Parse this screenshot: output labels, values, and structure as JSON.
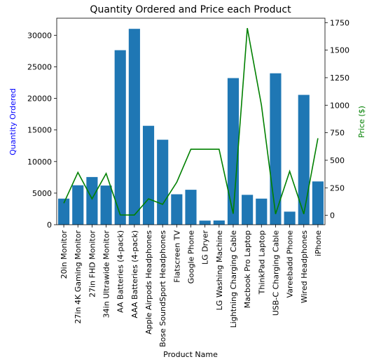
{
  "chart_data": {
    "type": "bar+line",
    "title": "Quantity Ordered and Price each Product",
    "xlabel": "Product Name",
    "y1label": "Quantity Ordered",
    "y2label": "Price ($)",
    "y1label_color": "#0000ff",
    "y2label_color": "#008000",
    "bar_color": "#1f77b4",
    "line_color": "#008000",
    "y1lim": [
      0,
      32700
    ],
    "y2lim": [
      -85,
      1790
    ],
    "y1_ticks": [
      0,
      5000,
      10000,
      15000,
      20000,
      25000,
      30000
    ],
    "y2_ticks": [
      0,
      250,
      500,
      750,
      1000,
      1250,
      1500,
      1750
    ],
    "categories": [
      "20in Monitor",
      "27in 4K Gaming Monitor",
      "27in FHD Monitor",
      "34in Ultrawide Monitor",
      "AA Batteries (4-pack)",
      "AAA Batteries (4-pack)",
      "Apple Airpods Headphones",
      "Bose SoundSport Headphones",
      "Flatscreen TV",
      "Google Phone",
      "LG Dryer",
      "LG Washing Machine",
      "Lightning Charging Cable",
      "Macbook Pro Laptop",
      "ThinkPad Laptop",
      "USB-C Charging Cable",
      "Vareebadd Phone",
      "Wired Headphones",
      "iPhone"
    ],
    "series": [
      {
        "name": "Quantity Ordered",
        "axis": "left",
        "kind": "bar",
        "values": [
          4129,
          6244,
          7550,
          6199,
          27635,
          31017,
          15661,
          13457,
          4819,
          5532,
          646,
          666,
          23217,
          4728,
          4130,
          23975,
          2068,
          20557,
          6849
        ]
      },
      {
        "name": "Price ($)",
        "axis": "right",
        "kind": "line",
        "values": [
          109.99,
          389.99,
          149.99,
          379.99,
          3.84,
          2.99,
          150.0,
          99.99,
          300.0,
          600.0,
          600.0,
          600.0,
          14.95,
          1700.0,
          999.99,
          11.95,
          400.0,
          11.99,
          700.0
        ]
      }
    ]
  }
}
